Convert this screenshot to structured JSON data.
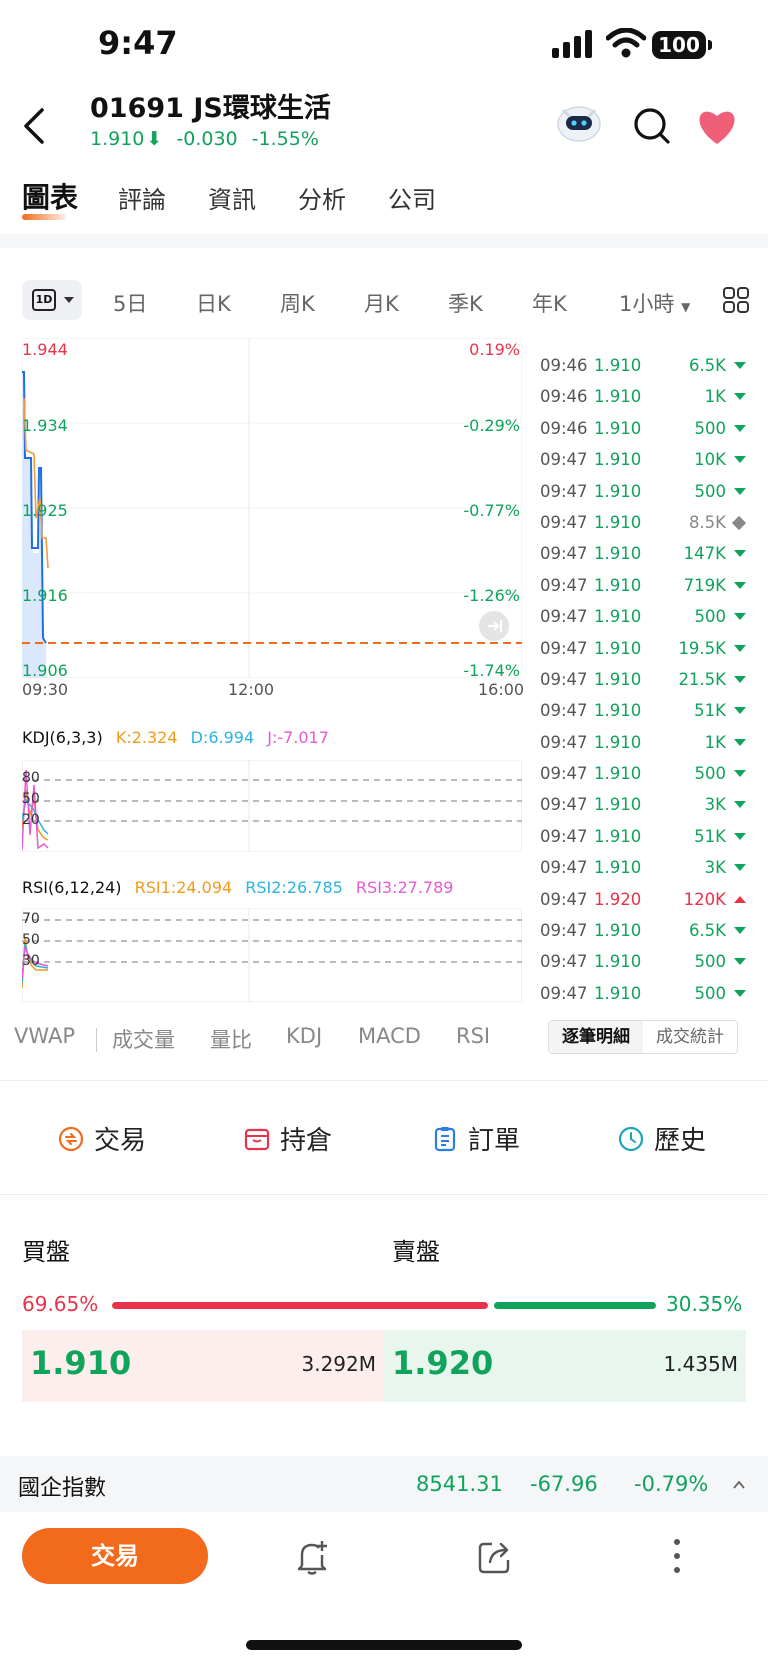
{
  "status_bar": {
    "time": "9:47",
    "battery": "100"
  },
  "header": {
    "stock_code_name": "01691 JS環球生活",
    "price": "1.910",
    "change": "-0.030",
    "change_pct": "-1.55%"
  },
  "tabs": [
    "圖表",
    "評論",
    "資訊",
    "分析",
    "公司"
  ],
  "periods": {
    "selected": "1D",
    "items": [
      "5日",
      "日K",
      "周K",
      "月K",
      "季K",
      "年K",
      "1小時"
    ]
  },
  "chart": {
    "left_labels": [
      "1.944",
      "1.934",
      "1.925",
      "1.916",
      "1.906"
    ],
    "right_labels": [
      "0.19%",
      "-0.29%",
      "-0.77%",
      "-1.26%",
      "-1.74%"
    ],
    "time_labels": [
      "09:30",
      "12:00",
      "16:00"
    ],
    "prev_close": 1.94
  },
  "kdj": {
    "title": "KDJ(6,3,3)",
    "k": "K:2.324",
    "d": "D:6.994",
    "j": "J:-7.017",
    "levels": [
      "80",
      "50",
      "20"
    ]
  },
  "rsi": {
    "title": "RSI(6,12,24)",
    "r1": "RSI1:24.094",
    "r2": "RSI2:26.785",
    "r3": "RSI3:27.789",
    "levels": [
      "70",
      "50",
      "30"
    ]
  },
  "colors": {
    "up": "#e8334a",
    "down": "#10a35c",
    "accent": "#f26a1b",
    "k": "#f39a1b",
    "d": "#2bb3e0",
    "j": "#e65ad6"
  },
  "ticks": [
    {
      "time": "09:46",
      "price": "1.910",
      "vol": "6.5K",
      "dir": "dn"
    },
    {
      "time": "09:46",
      "price": "1.910",
      "vol": "1K",
      "dir": "dn"
    },
    {
      "time": "09:46",
      "price": "1.910",
      "vol": "500",
      "dir": "dn"
    },
    {
      "time": "09:47",
      "price": "1.910",
      "vol": "10K",
      "dir": "dn"
    },
    {
      "time": "09:47",
      "price": "1.910",
      "vol": "500",
      "dir": "dn"
    },
    {
      "time": "09:47",
      "price": "1.910",
      "vol": "8.5K",
      "dir": "flat"
    },
    {
      "time": "09:47",
      "price": "1.910",
      "vol": "147K",
      "dir": "dn"
    },
    {
      "time": "09:47",
      "price": "1.910",
      "vol": "719K",
      "dir": "dn"
    },
    {
      "time": "09:47",
      "price": "1.910",
      "vol": "500",
      "dir": "dn"
    },
    {
      "time": "09:47",
      "price": "1.910",
      "vol": "19.5K",
      "dir": "dn"
    },
    {
      "time": "09:47",
      "price": "1.910",
      "vol": "21.5K",
      "dir": "dn"
    },
    {
      "time": "09:47",
      "price": "1.910",
      "vol": "51K",
      "dir": "dn"
    },
    {
      "time": "09:47",
      "price": "1.910",
      "vol": "1K",
      "dir": "dn"
    },
    {
      "time": "09:47",
      "price": "1.910",
      "vol": "500",
      "dir": "dn"
    },
    {
      "time": "09:47",
      "price": "1.910",
      "vol": "3K",
      "dir": "dn"
    },
    {
      "time": "09:47",
      "price": "1.910",
      "vol": "51K",
      "dir": "dn"
    },
    {
      "time": "09:47",
      "price": "1.910",
      "vol": "3K",
      "dir": "dn"
    },
    {
      "time": "09:47",
      "price": "1.920",
      "vol": "120K",
      "dir": "up"
    },
    {
      "time": "09:47",
      "price": "1.910",
      "vol": "6.5K",
      "dir": "dn"
    },
    {
      "time": "09:47",
      "price": "1.910",
      "vol": "500",
      "dir": "dn"
    },
    {
      "time": "09:47",
      "price": "1.910",
      "vol": "500",
      "dir": "dn"
    }
  ],
  "indicators": {
    "items": [
      "VWAP",
      "成交量",
      "量比",
      "KDJ",
      "MACD",
      "RSI"
    ],
    "seg1": "逐筆明細",
    "seg2": "成交統計"
  },
  "actions": [
    "交易",
    "持倉",
    "訂單",
    "歷史"
  ],
  "orderbook": {
    "bid_title": "買盤",
    "ask_title": "賣盤",
    "bid_pct": "69.65%",
    "ask_pct": "30.35%",
    "bid_price": "1.910",
    "bid_vol": "3.292M",
    "ask_price": "1.920",
    "ask_vol": "1.435M"
  },
  "index": {
    "name": "國企指數",
    "value": "8541.31",
    "change": "-67.96",
    "pct": "-0.79%"
  },
  "bottom": {
    "trade": "交易"
  }
}
